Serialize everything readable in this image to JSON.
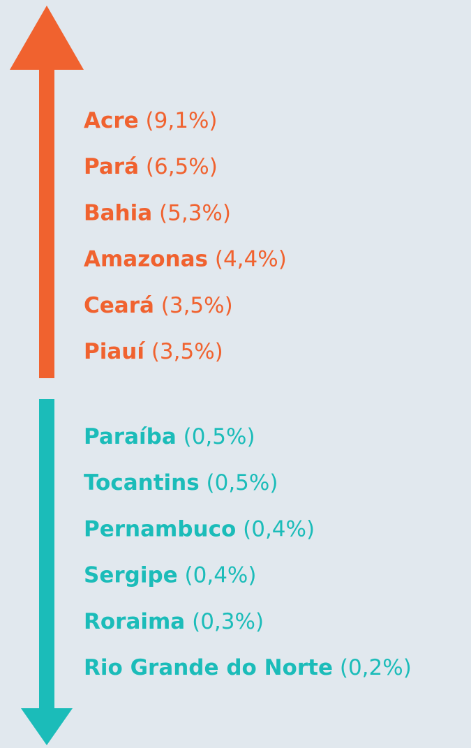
{
  "groups": [
    {
      "color": "#f0622f",
      "items": [
        {
          "name": "Acre",
          "value": "(9,1%)"
        },
        {
          "name": "Pará",
          "value": "(6,5%)"
        },
        {
          "name": "Bahia",
          "value": "(5,3%)"
        },
        {
          "name": "Amazonas",
          "value": "(4,4%)"
        },
        {
          "name": "Ceará",
          "value": "(3,5%)"
        },
        {
          "name": "Piauí",
          "value": "(3,5%)"
        }
      ]
    },
    {
      "color": "#1bbcb9",
      "items": [
        {
          "name": "Paraíba",
          "value": "(0,5%)"
        },
        {
          "name": "Tocantins",
          "value": "(0,5%)"
        },
        {
          "name": "Pernambuco",
          "value": "(0,4%)"
        },
        {
          "name": "Sergipe",
          "value": "(0,4%)"
        },
        {
          "name": "Roraima",
          "value": "(0,3%)"
        },
        {
          "name": "Rio Grande do Norte",
          "value": "(0,2%)"
        }
      ]
    }
  ]
}
